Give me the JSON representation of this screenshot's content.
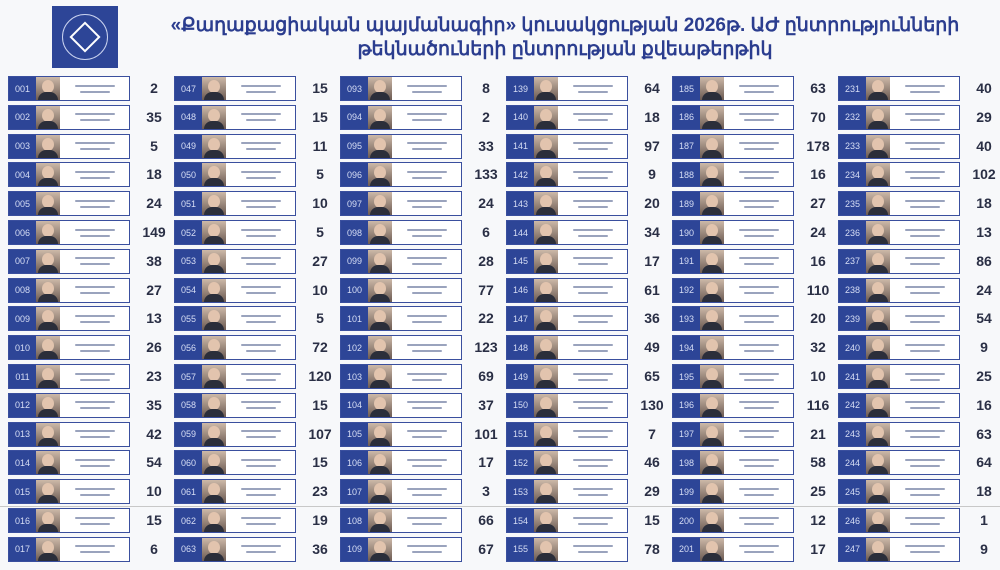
{
  "header": {
    "title_line1": "«Քաղաքացիական պայմանագիր» կուսակցության 2026թ. ԱԺ ընտրությունների",
    "title_line2": "թեկնածուների ընտրության քվեաթերթիկ",
    "logo_color": "#2d4597"
  },
  "colors": {
    "accent": "#2d4597",
    "title": "#2b3d8f"
  },
  "columns": [
    {
      "ids": [
        "001",
        "002",
        "003",
        "004",
        "005",
        "006",
        "007",
        "008",
        "009",
        "010",
        "011",
        "012",
        "013",
        "014",
        "015",
        "016",
        "017"
      ],
      "votes": [
        "2",
        "35",
        "5",
        "18",
        "24",
        "149",
        "38",
        "27",
        "13",
        "26",
        "23",
        "35",
        "42",
        "54",
        "10",
        "15",
        "6"
      ]
    },
    {
      "ids": [
        "047",
        "048",
        "049",
        "050",
        "051",
        "052",
        "053",
        "054",
        "055",
        "056",
        "057",
        "058",
        "059",
        "060",
        "061",
        "062",
        "063"
      ],
      "votes": [
        "15",
        "15",
        "11",
        "5",
        "10",
        "5",
        "27",
        "10",
        "5",
        "72",
        "120",
        "15",
        "107",
        "15",
        "23",
        "19",
        "36"
      ]
    },
    {
      "ids": [
        "093",
        "094",
        "095",
        "096",
        "097",
        "098",
        "099",
        "100",
        "101",
        "102",
        "103",
        "104",
        "105",
        "106",
        "107",
        "108",
        "109"
      ],
      "votes": [
        "8",
        "2",
        "33",
        "133",
        "24",
        "6",
        "28",
        "77",
        "22",
        "123",
        "69",
        "37",
        "101",
        "17",
        "3",
        "66",
        "67"
      ]
    },
    {
      "ids": [
        "139",
        "140",
        "141",
        "142",
        "143",
        "144",
        "145",
        "146",
        "147",
        "148",
        "149",
        "150",
        "151",
        "152",
        "153",
        "154",
        "155"
      ],
      "votes": [
        "64",
        "18",
        "97",
        "9",
        "20",
        "34",
        "17",
        "61",
        "36",
        "49",
        "65",
        "130",
        "7",
        "46",
        "29",
        "15",
        "78"
      ]
    },
    {
      "ids": [
        "185",
        "186",
        "187",
        "188",
        "189",
        "190",
        "191",
        "192",
        "193",
        "194",
        "195",
        "196",
        "197",
        "198",
        "199",
        "200",
        "201"
      ],
      "votes": [
        "63",
        "70",
        "178",
        "16",
        "27",
        "24",
        "16",
        "110",
        "20",
        "32",
        "10",
        "116",
        "21",
        "58",
        "25",
        "12",
        "17"
      ]
    },
    {
      "ids": [
        "231",
        "232",
        "233",
        "234",
        "235",
        "236",
        "237",
        "238",
        "239",
        "240",
        "241",
        "242",
        "243",
        "244",
        "245",
        "246",
        "247"
      ],
      "votes": [
        "40",
        "29",
        "40",
        "102",
        "18",
        "13",
        "86",
        "24",
        "54",
        "9",
        "25",
        "16",
        "63",
        "64",
        "18",
        "1",
        "9"
      ]
    }
  ]
}
